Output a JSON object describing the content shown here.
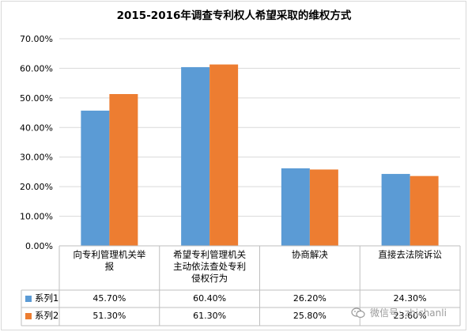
{
  "chart_data": {
    "type": "bar",
    "title": "2015-2016年调查专利权人希望采取的维权方式",
    "categories": [
      "向专利管理机关举报",
      "希望专利管理机关主动依法查处专利侵权行为",
      "协商解决",
      "直接去法院诉讼"
    ],
    "category_lines": [
      [
        "向专利管理机关举",
        "报"
      ],
      [
        "希望专利管理机关",
        "主动依法查处专利",
        "侵权行为"
      ],
      [
        "协商解决"
      ],
      [
        "直接去法院诉讼"
      ]
    ],
    "series": [
      {
        "name": "系列1",
        "values": [
          0.457,
          0.604,
          0.262,
          0.243
        ],
        "labels": [
          "45.70%",
          "60.40%",
          "26.20%",
          "24.30%"
        ],
        "color": "#5b9bd5"
      },
      {
        "name": "系列2",
        "values": [
          0.513,
          0.613,
          0.258,
          0.236
        ],
        "labels": [
          "51.30%",
          "61.30%",
          "25.80%",
          "23.60%"
        ],
        "color": "#ed7d31"
      }
    ],
    "ylim": [
      0,
      0.7
    ],
    "yticks": [
      "0.00%",
      "10.00%",
      "20.00%",
      "30.00%",
      "40.00%",
      "50.00%",
      "60.00%",
      "70.00%"
    ],
    "grid": true,
    "legend": "data-table"
  },
  "watermark": "微信号: zhichanli"
}
